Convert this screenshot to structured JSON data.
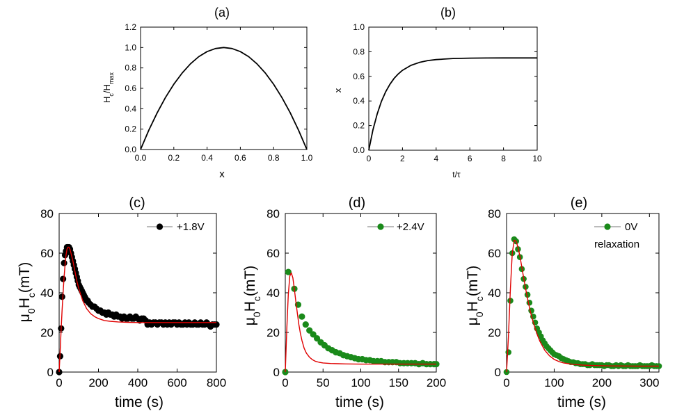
{
  "chart_data": [
    {
      "id": "a",
      "type": "line",
      "title": "(a)",
      "xlabel": "x",
      "ylabel": {
        "main": "H",
        "sub1": "c",
        "mid": "/H",
        "sub2": "max"
      },
      "xlim": [
        0,
        1
      ],
      "ylim": [
        0,
        1.2
      ],
      "xticks": [
        0.0,
        0.2,
        0.4,
        0.6,
        0.8,
        1.0
      ],
      "xtick_labels": [
        "0.0",
        "0.2",
        "0.4",
        "0.6",
        "0.8",
        "1.0"
      ],
      "yticks": [
        0.0,
        0.2,
        0.4,
        0.6,
        0.8,
        1.0,
        1.2
      ],
      "ytick_labels": [
        "0.0",
        "0.2",
        "0.4",
        "0.6",
        "0.8",
        "1.0",
        "1.2"
      ],
      "series": [
        {
          "name": "Hc/Hmax",
          "color": "#000000",
          "x": [
            0,
            0.05,
            0.1,
            0.15,
            0.2,
            0.25,
            0.3,
            0.35,
            0.4,
            0.45,
            0.5,
            0.55,
            0.6,
            0.65,
            0.7,
            0.75,
            0.8,
            0.85,
            0.9,
            0.95,
            1.0
          ],
          "y": [
            0,
            0.19,
            0.36,
            0.51,
            0.64,
            0.75,
            0.84,
            0.91,
            0.96,
            0.99,
            1.0,
            0.99,
            0.96,
            0.91,
            0.84,
            0.75,
            0.64,
            0.51,
            0.36,
            0.19,
            0
          ]
        }
      ]
    },
    {
      "id": "b",
      "type": "line",
      "title": "(b)",
      "xlabel": "t/τ",
      "ylabel": {
        "main": "x"
      },
      "xlim": [
        0,
        10
      ],
      "ylim": [
        0,
        1.0
      ],
      "xticks": [
        0,
        2,
        4,
        6,
        8,
        10
      ],
      "xtick_labels": [
        "0",
        "2",
        "4",
        "6",
        "8",
        "10"
      ],
      "yticks": [
        0.0,
        0.2,
        0.4,
        0.6,
        0.8,
        1.0
      ],
      "ytick_labels": [
        "0.0",
        "0.2",
        "0.4",
        "0.6",
        "0.8",
        "1.0"
      ],
      "series": [
        {
          "name": "x",
          "color": "#000000",
          "x": [
            0,
            0.25,
            0.5,
            0.75,
            1,
            1.25,
            1.5,
            1.75,
            2,
            2.5,
            3,
            3.5,
            4,
            5,
            6,
            7,
            8,
            9,
            10
          ],
          "y": [
            0,
            0.166,
            0.295,
            0.396,
            0.474,
            0.535,
            0.583,
            0.62,
            0.649,
            0.689,
            0.713,
            0.728,
            0.736,
            0.745,
            0.748,
            0.749,
            0.75,
            0.75,
            0.75
          ]
        }
      ]
    },
    {
      "id": "c",
      "type": "scatter",
      "title": "(c)",
      "xlabel": "time (s)",
      "ylabel": {
        "pre": "μ",
        "presub": "0",
        "main": "H",
        "sub1": "c",
        "post": "(mT)"
      },
      "xlim": [
        0,
        800
      ],
      "ylim": [
        0,
        80
      ],
      "xticks": [
        0,
        200,
        400,
        600,
        800
      ],
      "xtick_labels": [
        "0",
        "200",
        "400",
        "600",
        "800"
      ],
      "yticks": [
        0,
        20,
        40,
        60,
        80
      ],
      "ytick_labels": [
        "0",
        "20",
        "40",
        "60",
        "80"
      ],
      "legend": {
        "label": "+1.8V",
        "position": "top-right"
      },
      "series": [
        {
          "name": "+1.8V",
          "kind": "points",
          "color": "#000000",
          "x": [
            0,
            5,
            10,
            15,
            20,
            25,
            30,
            35,
            40,
            45,
            50,
            55,
            60,
            65,
            70,
            75,
            80,
            85,
            90,
            95,
            100,
            105,
            110,
            115,
            120,
            125,
            130,
            135,
            140,
            145,
            150,
            160,
            170,
            180,
            190,
            200,
            210,
            220,
            230,
            240,
            250,
            260,
            270,
            280,
            290,
            300,
            310,
            320,
            330,
            340,
            350,
            360,
            370,
            380,
            390,
            400,
            410,
            420,
            430,
            440,
            450,
            460,
            470,
            480,
            490,
            500,
            510,
            520,
            530,
            540,
            550,
            560,
            570,
            580,
            590,
            600,
            610,
            620,
            630,
            640,
            650,
            660,
            670,
            680,
            690,
            700,
            710,
            720,
            730,
            740,
            750,
            760,
            770,
            780,
            790,
            800
          ],
          "y": [
            0,
            8,
            22,
            38,
            47,
            55,
            59,
            61,
            63,
            63,
            63,
            62,
            60,
            58,
            56,
            54,
            52,
            50,
            48,
            46,
            44,
            43,
            42,
            41,
            40,
            39,
            38,
            37,
            36,
            36,
            35,
            34,
            33,
            33,
            32,
            31,
            31,
            30,
            30,
            29,
            30,
            29,
            29,
            28,
            29,
            28,
            28,
            27,
            28,
            27,
            27,
            28,
            27,
            27,
            28,
            27,
            26,
            27,
            27,
            26,
            24,
            25,
            24,
            25,
            25,
            24,
            25,
            25,
            24,
            25,
            24,
            25,
            24,
            25,
            25,
            24,
            25,
            24,
            24,
            25,
            24,
            25,
            24,
            24,
            25,
            24,
            24,
            25,
            24,
            24,
            25,
            24,
            23,
            24,
            24,
            24
          ]
        },
        {
          "name": "fit",
          "kind": "line",
          "color": "#e00000",
          "x": [
            0,
            5,
            10,
            15,
            20,
            25,
            30,
            35,
            40,
            45,
            50,
            55,
            60,
            70,
            80,
            90,
            100,
            120,
            140,
            160,
            180,
            200,
            230,
            260,
            300,
            350,
            400,
            500,
            600,
            700,
            800
          ],
          "y": [
            0,
            10,
            21,
            31,
            40,
            48,
            54,
            59,
            62,
            63,
            63,
            62,
            60,
            56,
            51,
            46,
            42,
            36,
            32,
            29.5,
            28,
            27,
            26,
            25.6,
            25.3,
            25.1,
            25,
            25,
            25,
            25,
            25
          ]
        }
      ]
    },
    {
      "id": "d",
      "type": "scatter",
      "title": "(d)",
      "xlabel": "time (s)",
      "ylabel": {
        "pre": "μ",
        "presub": "0",
        "main": "H",
        "sub1": "c",
        "post": "(mT)"
      },
      "xlim": [
        0,
        200
      ],
      "ylim": [
        0,
        80
      ],
      "xticks": [
        0,
        50,
        100,
        150,
        200
      ],
      "xtick_labels": [
        "0",
        "50",
        "100",
        "150",
        "200"
      ],
      "yticks": [
        0,
        20,
        40,
        60,
        80
      ],
      "ytick_labels": [
        "0",
        "20",
        "40",
        "60",
        "80"
      ],
      "legend": {
        "label": "+2.4V",
        "position": "top-right"
      },
      "series": [
        {
          "name": "+2.4V",
          "kind": "points",
          "color": "#1a8a1a",
          "x": [
            0,
            4,
            12,
            17,
            22,
            27,
            32,
            37,
            42,
            47,
            52,
            57,
            62,
            67,
            72,
            77,
            82,
            87,
            92,
            97,
            102,
            107,
            112,
            117,
            122,
            127,
            132,
            137,
            142,
            147,
            152,
            157,
            162,
            167,
            172,
            177,
            182,
            187,
            192,
            197,
            200
          ],
          "y": [
            0,
            50.5,
            42,
            34,
            28,
            24,
            21,
            19,
            17,
            15,
            13.5,
            12,
            11,
            10,
            9.5,
            8.5,
            8,
            7.5,
            7,
            6.5,
            6.5,
            6,
            6,
            5.5,
            5.5,
            5.5,
            5,
            5,
            5,
            5,
            4.5,
            4.5,
            4.5,
            4.5,
            4.5,
            4,
            4.5,
            4,
            4,
            4,
            4
          ]
        },
        {
          "name": "fit",
          "kind": "line",
          "color": "#e00000",
          "x": [
            0,
            2,
            4,
            6,
            8,
            10,
            12,
            14,
            16,
            18,
            20,
            22,
            25,
            28,
            32,
            36,
            40,
            45,
            50,
            60,
            70,
            80,
            100,
            120,
            150,
            200
          ],
          "y": [
            0,
            22,
            39,
            48.5,
            50,
            47.5,
            42,
            35.5,
            29.5,
            24,
            19.5,
            16,
            12,
            9.5,
            7.5,
            6.2,
            5.4,
            4.9,
            4.6,
            4.3,
            4.2,
            4.1,
            4,
            4,
            4,
            4
          ]
        }
      ]
    },
    {
      "id": "e",
      "type": "scatter",
      "title": "(e)",
      "xlabel": "time (s)",
      "ylabel": {
        "pre": "μ",
        "presub": "0",
        "main": "H",
        "sub1": "c",
        "post": "(mT)"
      },
      "xlim": [
        0,
        320
      ],
      "ylim": [
        0,
        80
      ],
      "xticks": [
        0,
        100,
        200,
        300
      ],
      "xtick_labels": [
        "0",
        "100",
        "200",
        "300"
      ],
      "yticks": [
        0,
        20,
        40,
        60,
        80
      ],
      "ytick_labels": [
        "0",
        "20",
        "40",
        "60",
        "80"
      ],
      "legend": {
        "label": "0V",
        "label2": "relaxation",
        "position": "top-right"
      },
      "series": [
        {
          "name": "0V relaxation",
          "kind": "points",
          "color": "#1a8a1a",
          "x": [
            0,
            4,
            8,
            12,
            16,
            20,
            24,
            28,
            32,
            36,
            40,
            44,
            48,
            52,
            56,
            60,
            64,
            68,
            72,
            76,
            80,
            84,
            88,
            92,
            96,
            100,
            105,
            110,
            115,
            120,
            125,
            130,
            135,
            140,
            145,
            150,
            155,
            160,
            165,
            170,
            175,
            180,
            185,
            190,
            195,
            200,
            205,
            210,
            215,
            220,
            225,
            230,
            235,
            240,
            245,
            250,
            255,
            260,
            265,
            270,
            275,
            280,
            285,
            290,
            295,
            300,
            305,
            310,
            315,
            320
          ],
          "y": [
            0,
            10,
            36,
            60,
            67,
            66,
            62,
            58,
            52,
            47,
            43,
            39,
            35,
            31,
            28,
            25,
            22,
            20,
            18,
            16,
            14.5,
            13,
            12,
            11,
            10,
            9,
            8.5,
            8,
            7,
            6.5,
            6,
            5.5,
            5,
            5,
            4.5,
            4.5,
            4,
            4,
            4,
            3.5,
            3.5,
            4,
            3.5,
            3.5,
            3.5,
            3.5,
            3,
            3.5,
            3.5,
            3,
            3,
            3.5,
            3,
            3.5,
            3,
            3,
            3.5,
            3,
            3,
            3,
            3,
            3.5,
            3,
            3,
            3,
            3,
            3.5,
            3,
            3,
            3
          ]
        },
        {
          "name": "fit",
          "kind": "line",
          "color": "#e00000",
          "x": [
            0,
            4,
            8,
            12,
            16,
            20,
            24,
            28,
            32,
            36,
            40,
            45,
            50,
            55,
            60,
            65,
            70,
            80,
            90,
            100,
            110,
            120,
            140,
            160,
            180,
            200,
            220,
            250,
            280,
            320
          ],
          "y": [
            0,
            18,
            42,
            60,
            66.5,
            66,
            63,
            58.5,
            53,
            47.5,
            42,
            36,
            30.5,
            26,
            22,
            18.5,
            15.5,
            11,
            8.2,
            6.4,
            5.3,
            4.6,
            3.9,
            3.5,
            3.3,
            3.2,
            3.1,
            3.05,
            3,
            3
          ]
        }
      ]
    }
  ]
}
